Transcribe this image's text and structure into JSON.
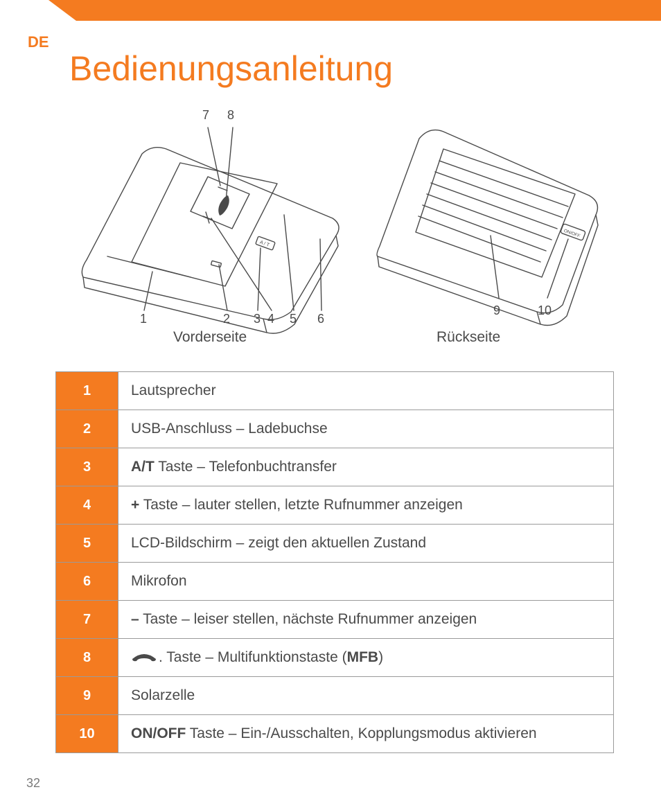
{
  "lang": "DE",
  "title": "Bedienungsanleitung",
  "front_caption": "Vorderseite",
  "back_caption": "Rückseite",
  "callouts_front_top": [
    "7",
    "8"
  ],
  "callouts_front_bottom": [
    "1",
    "2",
    "3",
    "4",
    "5",
    "6"
  ],
  "callouts_back": [
    "9",
    "10"
  ],
  "page_number": "32",
  "colors": {
    "accent": "#f47b20",
    "text": "#4a4a4a",
    "border": "#9a9a9a",
    "white": "#ffffff"
  },
  "legend": [
    {
      "n": "1",
      "html": "Lautsprecher"
    },
    {
      "n": "2",
      "html": "USB-Anschluss – Ladebuchse"
    },
    {
      "n": "3",
      "html": "<b>A/T</b> Taste – Telefonbuchtransfer"
    },
    {
      "n": "4",
      "html": "<b>+</b> Taste – lauter stellen, letzte Rufnummer anzeigen"
    },
    {
      "n": "5",
      "html": "LCD-Bildschirm – zeigt den aktuellen Zustand"
    },
    {
      "n": "6",
      "html": "Mikrofon"
    },
    {
      "n": "7",
      "html": "<b>–</b> Taste – leiser stellen, nächste Rufnummer anzeigen"
    },
    {
      "n": "8",
      "html": "PHONEICON. Taste – Multifunktionstaste (<b>MFB</b>)"
    },
    {
      "n": "9",
      "html": "Solarzelle"
    },
    {
      "n": "10",
      "html": "<b>ON/OFF</b> Taste – Ein-/Ausschalten, Kopplungsmodus aktivieren"
    }
  ]
}
